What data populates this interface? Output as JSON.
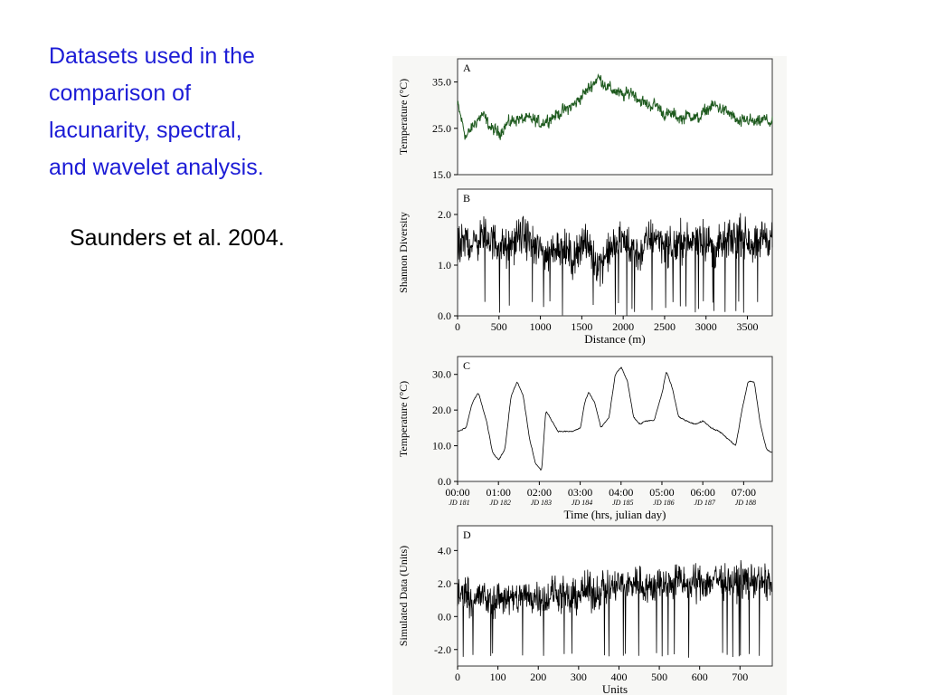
{
  "slide": {
    "title_lines": [
      "Datasets used in the",
      "comparison of",
      "lacunarity, spectral,",
      "and wavelet analysis."
    ],
    "citation": "Saunders et al. 2004.",
    "title_color": "#1c1cd6"
  },
  "chart_data": [
    {
      "type": "line",
      "panel_label": "A",
      "ylabel": "Temperature (°C)",
      "xlabel": "",
      "xlim": [
        0,
        3800
      ],
      "ylim": [
        15,
        40
      ],
      "yticks": [
        "35.0",
        "25.0",
        "15.0"
      ],
      "ytick_values": [
        35,
        25,
        15
      ],
      "line_color": "#1e5a1e",
      "series": [
        {
          "x": [
            0,
            100,
            200,
            300,
            400,
            500,
            600,
            700,
            800,
            900,
            1000,
            1100,
            1200,
            1300,
            1400,
            1500,
            1600,
            1700,
            1800,
            1900,
            2000,
            2100,
            2200,
            2300,
            2400,
            2500,
            2600,
            2700,
            2800,
            2900,
            3000,
            3100,
            3200,
            3300,
            3400,
            3500,
            3600,
            3700,
            3800
          ],
          "values": [
            30,
            23,
            26,
            28,
            25,
            24,
            26,
            27,
            27,
            27,
            26,
            27,
            28,
            29,
            30,
            32,
            34,
            36,
            34,
            33,
            32,
            33,
            31,
            30,
            30,
            28,
            28,
            27,
            28,
            27,
            29,
            30,
            29,
            28,
            26,
            27,
            26,
            27,
            26
          ]
        }
      ]
    },
    {
      "type": "line",
      "panel_label": "B",
      "ylabel": "Shannon Diversity",
      "xlabel": "Distance (m)",
      "xlim": [
        0,
        3800
      ],
      "ylim": [
        0,
        2.5
      ],
      "yticks": [
        "2.0",
        "1.0",
        "0.0"
      ],
      "ytick_values": [
        2.0,
        1.0,
        0.0
      ],
      "xticks": [
        "0",
        "500",
        "1000",
        "1500",
        "2000",
        "2500",
        "3000",
        "3500"
      ],
      "xtick_values": [
        0,
        500,
        1000,
        1500,
        2000,
        2500,
        3000,
        3500
      ],
      "line_color": "#000000",
      "series": [
        {
          "x": [
            0,
            100,
            200,
            300,
            400,
            500,
            600,
            700,
            800,
            900,
            1000,
            1100,
            1200,
            1300,
            1400,
            1500,
            1600,
            1700,
            1800,
            1900,
            2000,
            2100,
            2200,
            2300,
            2400,
            2500,
            2600,
            2700,
            2800,
            2900,
            3000,
            3100,
            3200,
            3300,
            3400,
            3500,
            3600,
            3700,
            3800
          ],
          "values": [
            1.3,
            1.5,
            1.4,
            1.6,
            1.5,
            1.4,
            1.3,
            1.5,
            1.6,
            1.4,
            1.3,
            1.2,
            1.4,
            1.3,
            1.1,
            1.5,
            1.3,
            1.0,
            1.2,
            1.4,
            1.5,
            1.3,
            1.2,
            1.5,
            1.6,
            1.4,
            1.3,
            1.5,
            1.4,
            1.6,
            1.5,
            1.3,
            1.4,
            1.5,
            1.6,
            1.5,
            1.4,
            1.6,
            1.5
          ]
        }
      ]
    },
    {
      "type": "line",
      "panel_label": "C",
      "ylabel": "Temperature (°C)",
      "xlabel": "Time (hrs, julian day)",
      "xlim": [
        0,
        7.7
      ],
      "ylim": [
        0,
        35
      ],
      "yticks": [
        "30.0",
        "20.0",
        "10.0",
        "0.0"
      ],
      "ytick_values": [
        30,
        20,
        10,
        0
      ],
      "xticks": [
        "00:00",
        "01:00",
        "02:00",
        "03:00",
        "04:00",
        "05:00",
        "06:00",
        "07:00"
      ],
      "xtick_values": [
        0,
        1,
        2,
        3,
        4,
        5,
        6,
        7
      ],
      "xsubticks": [
        "JD 181",
        "JD 182",
        "JD 183",
        "JD 184",
        "JD 185",
        "JD 186",
        "JD 187",
        "JD 188"
      ],
      "line_color": "#000000",
      "series": [
        {
          "x": [
            0,
            0.2,
            0.35,
            0.5,
            0.7,
            0.85,
            1.0,
            1.15,
            1.3,
            1.45,
            1.6,
            1.75,
            1.9,
            2.05,
            2.15,
            2.3,
            2.45,
            2.6,
            2.8,
            3.0,
            3.1,
            3.2,
            3.35,
            3.5,
            3.7,
            3.85,
            4.0,
            4.15,
            4.3,
            4.45,
            4.6,
            4.8,
            5.0,
            5.1,
            5.25,
            5.4,
            5.6,
            5.8,
            6.0,
            6.2,
            6.4,
            6.6,
            6.8,
            6.95,
            7.1,
            7.25,
            7.4,
            7.55,
            7.7
          ],
          "values": [
            14,
            15,
            22,
            25,
            17,
            8,
            6,
            9,
            24,
            28,
            24,
            12,
            5,
            3,
            20,
            17,
            14,
            14,
            14,
            15,
            22,
            25,
            22,
            15,
            18,
            30,
            32,
            28,
            18,
            16,
            17,
            17,
            25,
            31,
            26,
            18,
            17,
            16,
            17,
            15,
            14,
            12,
            10,
            20,
            28,
            28,
            16,
            9,
            8
          ]
        }
      ]
    },
    {
      "type": "line",
      "panel_label": "D",
      "ylabel": "Simulated Data (Units)",
      "xlabel": "Units",
      "xlim": [
        0,
        780
      ],
      "ylim": [
        -3,
        5.5
      ],
      "yticks": [
        "4.0",
        "2.0",
        "0.0",
        "-2.0"
      ],
      "ytick_values": [
        4,
        2,
        0,
        -2
      ],
      "xticks": [
        "0",
        "100",
        "200",
        "300",
        "400",
        "500",
        "600",
        "700"
      ],
      "xtick_values": [
        0,
        100,
        200,
        300,
        400,
        500,
        600,
        700
      ],
      "line_color": "#000000",
      "series": [
        {
          "x": [
            0,
            20,
            40,
            60,
            80,
            100,
            120,
            140,
            160,
            180,
            200,
            220,
            240,
            260,
            280,
            300,
            320,
            340,
            360,
            380,
            400,
            420,
            440,
            460,
            480,
            500,
            520,
            540,
            560,
            580,
            600,
            620,
            640,
            660,
            680,
            700,
            720,
            740,
            760,
            780
          ],
          "values": [
            1.2,
            1.5,
            1.0,
            1.3,
            0.8,
            1.1,
            1.2,
            0.9,
            1.4,
            1.1,
            1.3,
            1.0,
            1.5,
            1.2,
            1.0,
            1.4,
            1.6,
            1.3,
            1.8,
            1.6,
            2.0,
            1.8,
            2.2,
            1.9,
            1.7,
            2.1,
            1.9,
            2.3,
            2.0,
            1.8,
            2.2,
            2.0,
            2.4,
            2.1,
            1.9,
            2.3,
            2.1,
            2.2,
            2.0,
            2.1
          ]
        }
      ]
    }
  ]
}
